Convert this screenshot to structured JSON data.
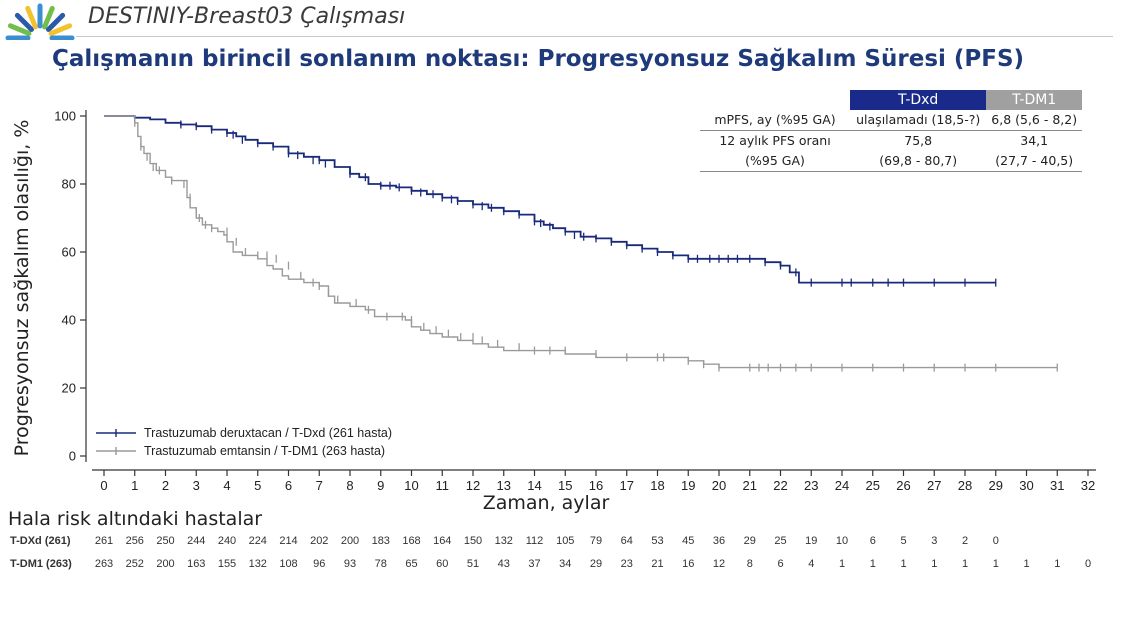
{
  "header": {
    "slide_title": "DESTINIY-Breast03 Çalışması",
    "headline": "Çalışmanın birincil sonlanım noktası: Progresyonsuz Sağkalım Süresi (PFS)",
    "logo_colors": [
      "#3a8fd0",
      "#6fbf4a",
      "#2a5aa8",
      "#f2c230"
    ]
  },
  "stats_table": {
    "columns": [
      "T-Dxd",
      "T-DM1"
    ],
    "column_colors": [
      "#1a2a8a",
      "#a0a0a0"
    ],
    "rows": [
      {
        "label": "mPFS, ay (%95 GA)",
        "values": [
          "ulaşılamadı (18,5-?)",
          "6,8 (5,6 - 8,2)"
        ]
      },
      {
        "label": "12 aylık PFS oranı",
        "values": [
          "75,8",
          "34,1"
        ]
      },
      {
        "label": "(%95 GA)",
        "values": [
          "(69,8 - 80,7)",
          "(27,7 - 40,5)"
        ]
      }
    ]
  },
  "risk_table": {
    "title": "Hala risk altındaki hastalar",
    "rows": [
      {
        "label": "T-DXd (261)",
        "values": [
          "261",
          "256",
          "250",
          "244",
          "240",
          "224",
          "214",
          "202",
          "200",
          "183",
          "168",
          "164",
          "150",
          "132",
          "112",
          "105",
          "79",
          "64",
          "53",
          "45",
          "36",
          "29",
          "25",
          "19",
          "10",
          "6",
          "5",
          "3",
          "2",
          "0"
        ]
      },
      {
        "label": "T-DM1 (263)",
        "values": [
          "263",
          "252",
          "200",
          "163",
          "155",
          "132",
          "108",
          "96",
          "93",
          "78",
          "65",
          "60",
          "51",
          "43",
          "37",
          "34",
          "29",
          "23",
          "21",
          "16",
          "12",
          "8",
          "6",
          "4",
          "1",
          "1",
          "1",
          "1",
          "1",
          "1",
          "1",
          "1",
          "0"
        ]
      }
    ]
  },
  "chart_data": {
    "type": "line",
    "title": "",
    "xlabel": "Zaman, aylar",
    "ylabel": "Progresyonsuz sağkalım olasılığı, %",
    "xlim": [
      0,
      32
    ],
    "ylim": [
      0,
      100
    ],
    "x_ticks": [
      0,
      1,
      2,
      3,
      4,
      5,
      6,
      7,
      8,
      9,
      10,
      11,
      12,
      13,
      14,
      15,
      16,
      17,
      18,
      19,
      20,
      21,
      22,
      23,
      24,
      25,
      26,
      27,
      28,
      29,
      30,
      31,
      32
    ],
    "y_ticks": [
      0,
      20,
      40,
      60,
      80,
      100
    ],
    "grid": false,
    "legend_position": "bottom-left",
    "series": [
      {
        "name": "Trastuzumab deruxtacan / T-Dxd (261 hasta)",
        "color": "#1a2a7a",
        "x": [
          0,
          1,
          1.5,
          2,
          2.5,
          3,
          3.5,
          4,
          4.3,
          4.6,
          5,
          5.5,
          6,
          6.5,
          7,
          7.5,
          8,
          8.3,
          8.6,
          9,
          9.5,
          10,
          10.5,
          11,
          11.5,
          12,
          12.5,
          13,
          13.5,
          14,
          14.3,
          14.6,
          15,
          15.5,
          16,
          16.5,
          17,
          17.5,
          18,
          18.5,
          19,
          19.5,
          20,
          20.5,
          21,
          21.5,
          22,
          22.3,
          22.6,
          23,
          24,
          25,
          26,
          27,
          28,
          29
        ],
        "y": [
          100,
          99.5,
          99,
          98,
          97.5,
          97,
          96,
          95,
          94,
          93,
          92,
          91,
          89,
          88,
          87,
          85,
          83,
          82,
          80,
          79.5,
          79,
          78,
          77,
          76,
          75,
          74,
          73,
          72,
          71,
          69,
          68,
          67,
          66,
          64.5,
          64,
          63,
          62,
          61,
          60,
          59,
          58,
          58,
          58,
          58,
          58,
          57,
          56,
          54,
          51,
          51,
          51,
          51,
          51,
          51,
          51,
          51
        ],
        "censor_x": [
          2.5,
          3,
          3.5,
          4,
          4.2,
          4.5,
          5,
          5.5,
          6,
          6.3,
          6.8,
          7,
          7.2,
          8,
          8.5,
          9,
          9.3,
          9.6,
          10,
          10.3,
          10.7,
          11,
          11.3,
          11.5,
          12,
          12.3,
          12.6,
          13,
          13.5,
          14,
          14.2,
          14.5,
          15,
          15.3,
          15.6,
          16,
          16.5,
          17,
          17.5,
          18,
          18.5,
          19,
          19.3,
          19.7,
          20,
          20.3,
          20.6,
          21,
          21.5,
          22,
          22.5,
          23,
          24,
          24.3,
          25,
          25.5,
          26,
          27,
          28,
          29
        ],
        "censor_y": [
          97.5,
          97,
          96,
          95,
          94.5,
          93,
          92,
          91,
          89,
          88.5,
          87,
          87,
          86,
          83,
          82,
          79.5,
          79.5,
          79,
          78,
          77.5,
          77,
          76,
          75.5,
          75,
          74,
          73.5,
          73,
          72,
          71,
          69,
          68.5,
          67.5,
          66,
          65,
          64.5,
          64,
          63,
          62,
          61,
          60,
          59,
          58,
          58,
          58,
          58,
          58,
          58,
          58,
          57,
          56,
          54,
          51,
          51,
          51,
          51,
          51,
          51,
          51,
          51,
          51
        ]
      },
      {
        "name": "Trastuzumab emtansin / T-DM1 (263 hasta)",
        "color": "#9a9a9a",
        "x": [
          0,
          1,
          1.1,
          1.2,
          1.3,
          1.5,
          1.7,
          2,
          2.2,
          2.5,
          2.7,
          2.8,
          3,
          3.2,
          3.5,
          3.7,
          3.9,
          4,
          4.2,
          4.5,
          4.8,
          5,
          5.3,
          5.5,
          5.8,
          6,
          6.5,
          7,
          7.3,
          7.5,
          8,
          8.5,
          8.8,
          9,
          9.5,
          9.8,
          10,
          10.3,
          10.6,
          11,
          11.5,
          12,
          12.5,
          13,
          13.5,
          14,
          15,
          16,
          17,
          18,
          19,
          19.5,
          20,
          21,
          22,
          23,
          24,
          25,
          26,
          27,
          28,
          29,
          30,
          31
        ],
        "y": [
          100,
          98,
          94,
          91,
          89,
          86,
          84,
          82,
          81,
          81,
          76,
          73,
          70,
          68,
          67,
          66,
          65,
          63,
          60,
          59,
          59,
          58,
          56,
          55,
          53,
          52,
          51,
          50,
          47,
          45,
          44,
          43,
          41,
          41,
          41,
          40,
          38,
          37,
          36,
          35,
          34,
          33,
          32,
          31,
          31,
          31,
          30,
          29,
          29,
          29,
          28,
          27,
          26,
          26,
          26,
          26,
          26,
          26,
          26,
          26,
          26,
          26,
          26,
          26
        ],
        "censor_x": [
          1,
          1.2,
          1.4,
          1.6,
          1.8,
          2.2,
          2.6,
          2.8,
          3,
          3.1,
          3.3,
          3.5,
          4,
          4.3,
          4.6,
          5,
          5.3,
          5.6,
          6,
          6.4,
          6.8,
          7,
          7.3,
          7.6,
          8.2,
          8.6,
          9.2,
          9.7,
          10,
          10.4,
          10.8,
          11.2,
          11.6,
          12,
          12.3,
          12.8,
          13.5,
          14,
          14.5,
          15,
          16,
          17,
          18,
          18.2,
          19,
          19.5,
          20,
          21,
          21.3,
          21.6,
          22,
          22.5,
          23,
          24,
          25,
          26,
          27,
          28,
          29,
          31
        ],
        "censor_y": [
          98,
          91,
          88,
          85,
          84,
          81,
          80,
          76,
          72,
          70,
          68,
          67,
          66,
          63,
          60,
          59,
          59,
          58,
          56,
          53,
          51,
          50,
          48,
          46,
          45,
          43,
          41,
          41,
          40,
          38,
          37,
          36,
          35,
          35,
          34,
          33,
          32,
          31,
          31,
          31,
          30,
          29,
          29,
          29,
          28,
          27,
          26,
          26,
          26,
          26,
          26,
          26,
          26,
          26,
          26,
          26,
          26,
          26,
          26,
          26
        ]
      }
    ]
  }
}
